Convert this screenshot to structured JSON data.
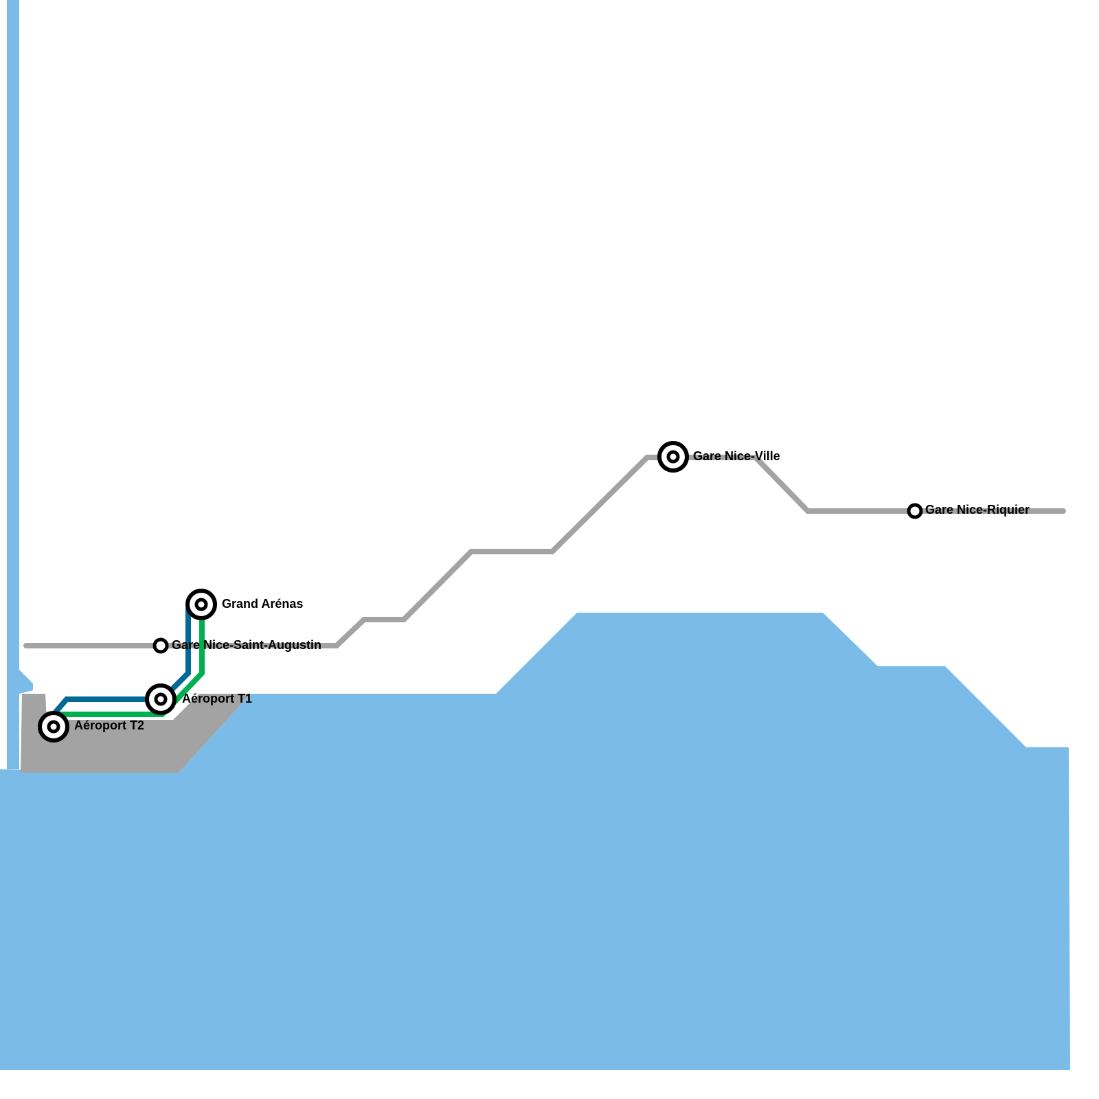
{
  "stations": [
    {
      "label": "Grand Arénas"
    },
    {
      "label": "Gare Nice-Saint-Augustin"
    },
    {
      "label": "Aéroport T1"
    },
    {
      "label": "Aéroport T2"
    },
    {
      "label": "Gare Nice-Ville"
    },
    {
      "label": "Gare Nice-Riquier"
    }
  ]
}
